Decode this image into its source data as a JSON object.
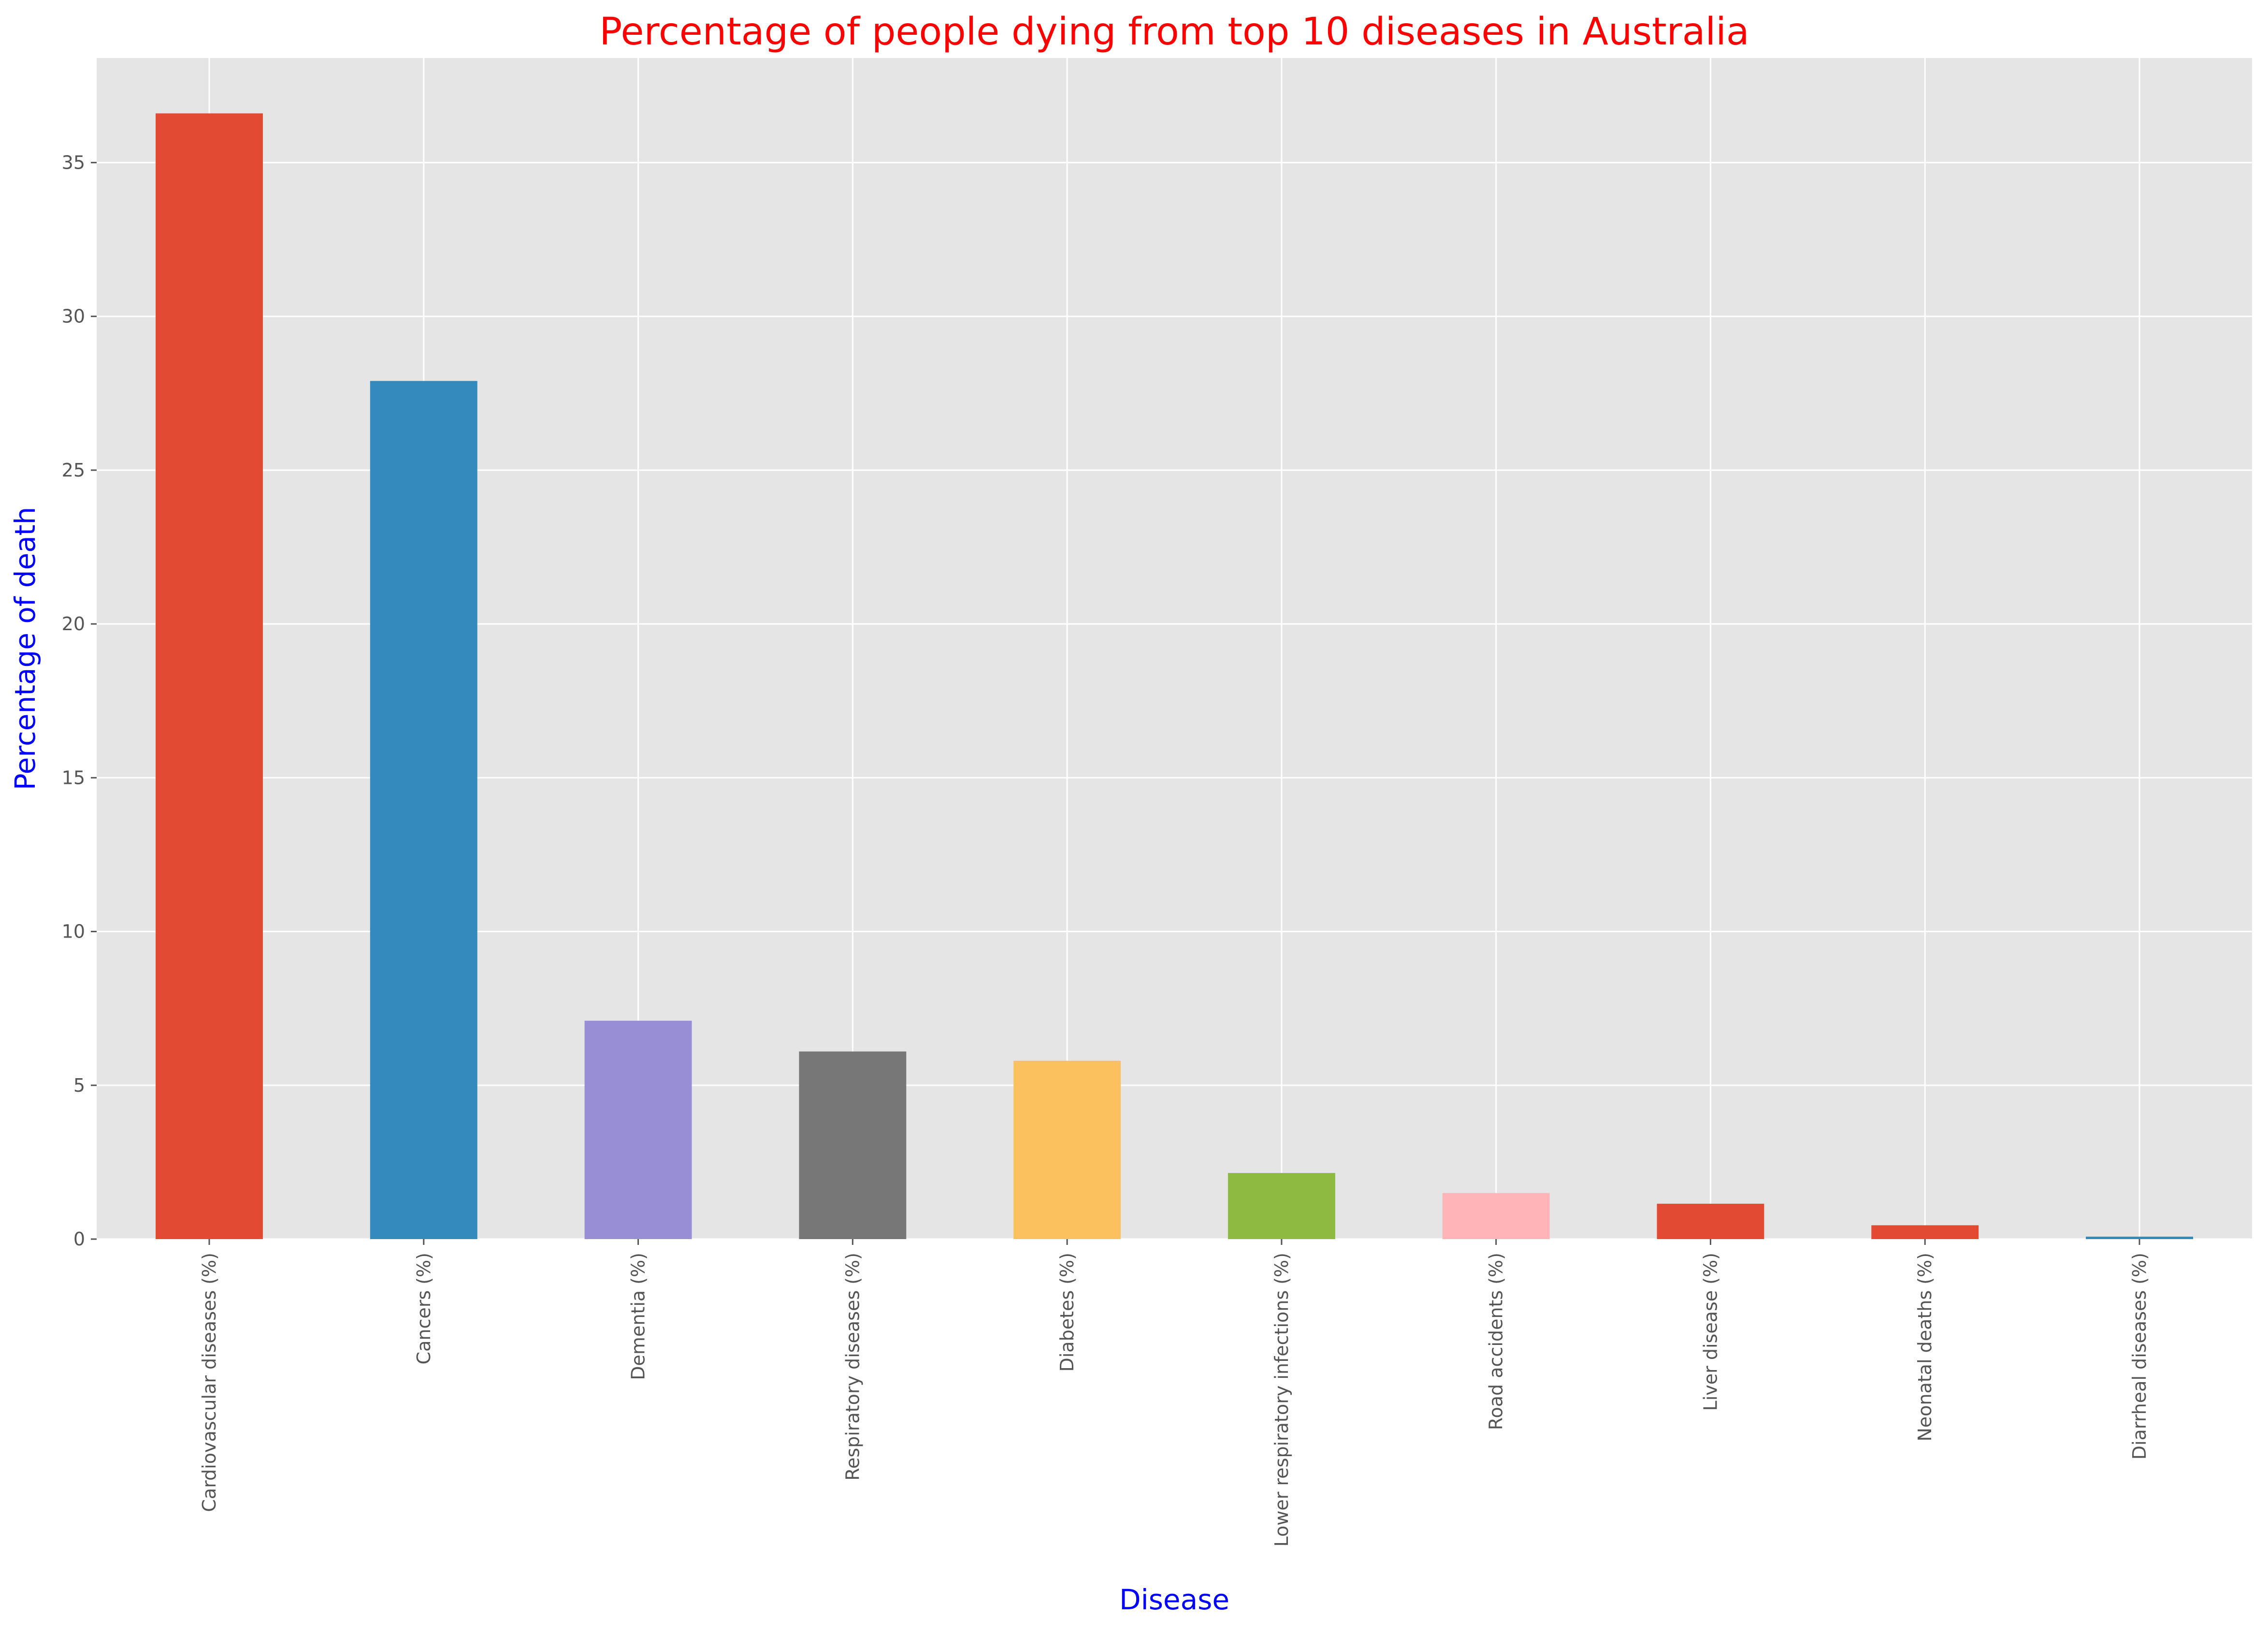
{
  "chart_data": {
    "type": "bar",
    "title": "Percentage of people dying from top 10 diseases in Australia",
    "xlabel": "Disease",
    "ylabel": "Percentage of death",
    "categories": [
      "Cardiovascular diseases (%)",
      "Cancers (%)",
      "Dementia (%)",
      "Respiratory diseases (%)",
      "Diabetes (%)",
      "Lower respiratory infections (%)",
      "Road accidents (%)",
      "Liver disease (%)",
      "Neonatal deaths (%)",
      "Diarrheal diseases (%)"
    ],
    "values": [
      36.6,
      27.9,
      7.1,
      6.1,
      5.8,
      2.15,
      1.5,
      1.15,
      0.45,
      0.08
    ],
    "bar_colors": [
      "#e24a33",
      "#348abd",
      "#988ed5",
      "#777777",
      "#fbc15e",
      "#8eba42",
      "#ffb5b8",
      "#e24a33",
      "#e24a33",
      "#348abd"
    ],
    "yticks": [
      0,
      5,
      10,
      15,
      20,
      25,
      30,
      35
    ],
    "ylim": [
      0,
      38.4
    ],
    "grid": true,
    "legend": "none",
    "style": {
      "title_color": "#ff0000",
      "axis_label_color": "#0000ff",
      "plot_background": "#e5e5e5",
      "grid_color": "#ffffff",
      "tick_color": "#555555"
    }
  }
}
